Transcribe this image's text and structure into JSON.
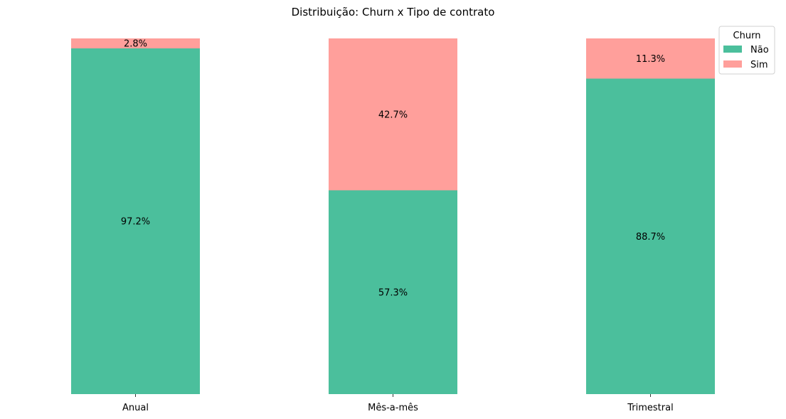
{
  "chart_data": {
    "type": "bar",
    "stacked": true,
    "normalized_percent": true,
    "title": "Distribuição: Churn x Tipo de contrato",
    "xlabel": "",
    "ylabel": "",
    "ylim": [
      0,
      100
    ],
    "categories": [
      "Anual",
      "Mês-a-mês",
      "Trimestral"
    ],
    "series": [
      {
        "name": "Não",
        "values": [
          97.2,
          57.3,
          88.7
        ],
        "labels": [
          "97.2%",
          "57.3%",
          "88.7%"
        ],
        "color": "#4bbf9c"
      },
      {
        "name": "Sim",
        "values": [
          2.8,
          42.7,
          11.3
        ],
        "labels": [
          "2.8%",
          "42.7%",
          "11.3%"
        ],
        "color": "#ff9f9b"
      }
    ],
    "legend": {
      "title": "Churn",
      "placement": "top-right"
    },
    "grid": false,
    "y_axis_visible": false
  }
}
